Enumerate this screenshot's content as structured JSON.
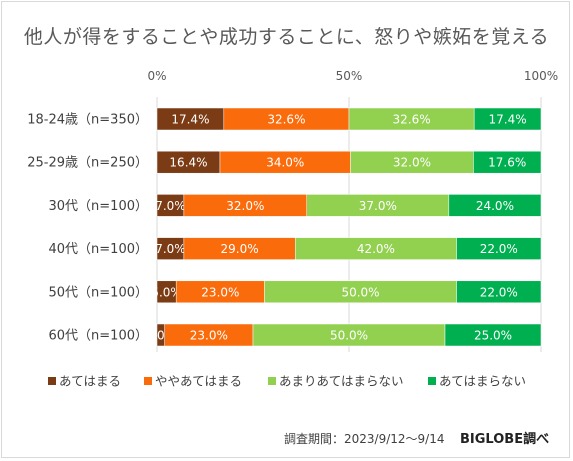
{
  "chart_data": {
    "type": "bar",
    "stacked": true,
    "orientation": "horizontal",
    "title": "他人が得をすることや成功することに、怒りや嫉妬を覚える",
    "categories": [
      "18-24歳（n=350）",
      "25-29歳（n=250）",
      "30代（n=100）",
      "40代（n=100）",
      "50代（n=100）",
      "60代（n=100）"
    ],
    "series": [
      {
        "name": "あてはまる",
        "color": "#7b3b14",
        "values": [
          17.4,
          16.4,
          7.0,
          7.0,
          5.0,
          2.0
        ]
      },
      {
        "name": "ややあてはまる",
        "color": "#f96b0b",
        "values": [
          32.6,
          34.0,
          32.0,
          29.0,
          23.0,
          23.0
        ]
      },
      {
        "name": "あまりあてはまらない",
        "color": "#92d050",
        "values": [
          32.6,
          32.0,
          37.0,
          42.0,
          50.0,
          50.0
        ]
      },
      {
        "name": "あてはまらない",
        "color": "#00b050",
        "values": [
          17.4,
          17.6,
          24.0,
          22.0,
          22.0,
          25.0
        ]
      }
    ],
    "xlim": [
      0,
      100
    ],
    "ticks": [
      "0%",
      "50%",
      "100%"
    ],
    "tick_values": [
      0,
      50,
      100
    ],
    "grid": true,
    "legend": "bottom"
  },
  "footer": {
    "note": "調査期間：2023/9/12～9/14",
    "brand": "BIGLOBE調べ"
  }
}
